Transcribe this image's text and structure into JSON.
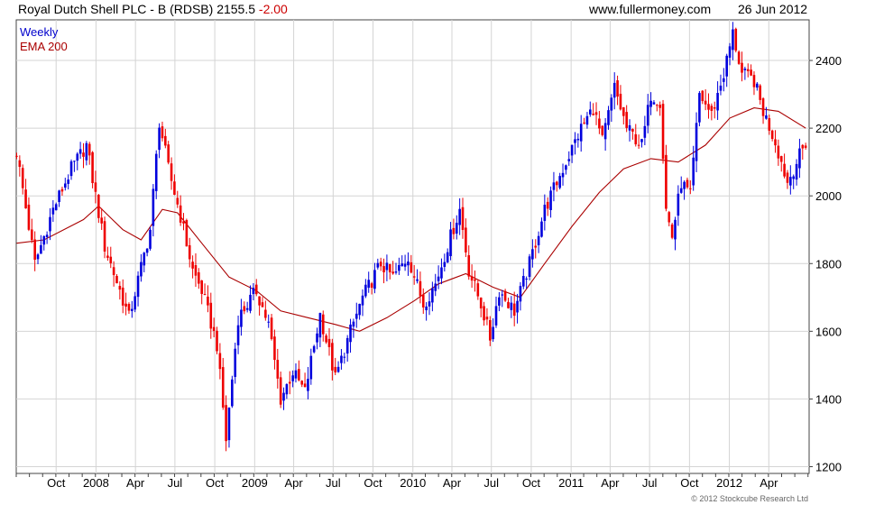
{
  "header": {
    "title": "Royal Dutch Shell PLC - B (RDSB)",
    "last": "2155.5",
    "change": "-2.00",
    "site": "www.fullermoney.com",
    "date": "26 Jun 2012"
  },
  "legend": {
    "weekly": "Weekly",
    "ema": "EMA 200"
  },
  "copyright": "© 2012 Stockcube Research Ltd",
  "colors": {
    "up": "#0000dd",
    "down": "#ee0000",
    "ema": "#aa0000",
    "grid": "#d4d4d4"
  },
  "chart_data": {
    "type": "candlestick",
    "title": "Royal Dutch Shell PLC - B (RDSB)",
    "ylim": [
      1180,
      2520
    ],
    "yticks": [
      1200,
      1400,
      1600,
      1800,
      2000,
      2200,
      2400
    ],
    "xticks": [
      {
        "label": "Oct",
        "date": "2007-10-01"
      },
      {
        "label": "2008",
        "date": "2008-01-01"
      },
      {
        "label": "Apr",
        "date": "2008-04-01"
      },
      {
        "label": "Jul",
        "date": "2008-07-01"
      },
      {
        "label": "Oct",
        "date": "2008-10-01"
      },
      {
        "label": "2009",
        "date": "2009-01-01"
      },
      {
        "label": "Apr",
        "date": "2009-04-01"
      },
      {
        "label": "Jul",
        "date": "2009-07-01"
      },
      {
        "label": "Oct",
        "date": "2009-10-01"
      },
      {
        "label": "2010",
        "date": "2010-01-01"
      },
      {
        "label": "Apr",
        "date": "2010-04-01"
      },
      {
        "label": "Jul",
        "date": "2010-07-01"
      },
      {
        "label": "Oct",
        "date": "2010-10-01"
      },
      {
        "label": "2011",
        "date": "2011-01-01"
      },
      {
        "label": "Apr",
        "date": "2011-04-01"
      },
      {
        "label": "Jul",
        "date": "2011-07-01"
      },
      {
        "label": "Oct",
        "date": "2011-10-01"
      },
      {
        "label": "2012",
        "date": "2012-01-01"
      },
      {
        "label": "Apr",
        "date": "2012-04-01"
      }
    ],
    "series": [
      {
        "name": "Weekly",
        "key_closes": [
          {
            "date": "2007-07-02",
            "value": 2130
          },
          {
            "date": "2007-08-13",
            "value": 1800
          },
          {
            "date": "2007-09-24",
            "value": 1960
          },
          {
            "date": "2007-11-05",
            "value": 2080
          },
          {
            "date": "2007-12-10",
            "value": 2150
          },
          {
            "date": "2008-01-21",
            "value": 1850
          },
          {
            "date": "2008-02-25",
            "value": 1720
          },
          {
            "date": "2008-03-17",
            "value": 1640
          },
          {
            "date": "2008-05-05",
            "value": 1900
          },
          {
            "date": "2008-05-26",
            "value": 2220
          },
          {
            "date": "2008-06-16",
            "value": 2080
          },
          {
            "date": "2008-07-14",
            "value": 1940
          },
          {
            "date": "2008-08-11",
            "value": 1780
          },
          {
            "date": "2008-09-01",
            "value": 1720
          },
          {
            "date": "2008-10-06",
            "value": 1560
          },
          {
            "date": "2008-10-27",
            "value": 1280
          },
          {
            "date": "2008-11-24",
            "value": 1640
          },
          {
            "date": "2009-01-05",
            "value": 1720
          },
          {
            "date": "2009-02-02",
            "value": 1620
          },
          {
            "date": "2009-03-02",
            "value": 1400
          },
          {
            "date": "2009-03-30",
            "value": 1480
          },
          {
            "date": "2009-04-27",
            "value": 1420
          },
          {
            "date": "2009-06-01",
            "value": 1650
          },
          {
            "date": "2009-07-06",
            "value": 1460
          },
          {
            "date": "2009-08-10",
            "value": 1600
          },
          {
            "date": "2009-09-07",
            "value": 1700
          },
          {
            "date": "2009-10-19",
            "value": 1800
          },
          {
            "date": "2009-11-16",
            "value": 1760
          },
          {
            "date": "2009-12-21",
            "value": 1820
          },
          {
            "date": "2010-01-25",
            "value": 1680
          },
          {
            "date": "2010-02-22",
            "value": 1740
          },
          {
            "date": "2010-03-29",
            "value": 1880
          },
          {
            "date": "2010-04-19",
            "value": 1960
          },
          {
            "date": "2010-05-10",
            "value": 1780
          },
          {
            "date": "2010-06-07",
            "value": 1680
          },
          {
            "date": "2010-06-28",
            "value": 1580
          },
          {
            "date": "2010-07-19",
            "value": 1720
          },
          {
            "date": "2010-08-23",
            "value": 1660
          },
          {
            "date": "2010-09-27",
            "value": 1800
          },
          {
            "date": "2010-11-01",
            "value": 1960
          },
          {
            "date": "2010-12-13",
            "value": 2080
          },
          {
            "date": "2011-01-24",
            "value": 2200
          },
          {
            "date": "2011-02-21",
            "value": 2260
          },
          {
            "date": "2011-03-14",
            "value": 2160
          },
          {
            "date": "2011-04-11",
            "value": 2320
          },
          {
            "date": "2011-05-09",
            "value": 2200
          },
          {
            "date": "2011-06-13",
            "value": 2150
          },
          {
            "date": "2011-07-04",
            "value": 2300
          },
          {
            "date": "2011-07-25",
            "value": 2280
          },
          {
            "date": "2011-08-08",
            "value": 1960
          },
          {
            "date": "2011-08-22",
            "value": 1880
          },
          {
            "date": "2011-09-12",
            "value": 2040
          },
          {
            "date": "2011-10-03",
            "value": 2000
          },
          {
            "date": "2011-10-24",
            "value": 2300
          },
          {
            "date": "2011-11-21",
            "value": 2240
          },
          {
            "date": "2011-12-19",
            "value": 2360
          },
          {
            "date": "2012-01-09",
            "value": 2480
          },
          {
            "date": "2012-01-30",
            "value": 2360
          },
          {
            "date": "2012-02-27",
            "value": 2340
          },
          {
            "date": "2012-03-19",
            "value": 2250
          },
          {
            "date": "2012-04-16",
            "value": 2160
          },
          {
            "date": "2012-05-14",
            "value": 2040
          },
          {
            "date": "2012-06-04",
            "value": 2100
          },
          {
            "date": "2012-06-25",
            "value": 2155.5
          }
        ]
      },
      {
        "name": "EMA 200",
        "points": [
          {
            "date": "2007-07-02",
            "value": 1860
          },
          {
            "date": "2007-09-03",
            "value": 1870
          },
          {
            "date": "2007-12-03",
            "value": 1930
          },
          {
            "date": "2008-01-07",
            "value": 1970
          },
          {
            "date": "2008-03-03",
            "value": 1900
          },
          {
            "date": "2008-04-14",
            "value": 1870
          },
          {
            "date": "2008-06-02",
            "value": 1960
          },
          {
            "date": "2008-07-07",
            "value": 1950
          },
          {
            "date": "2008-09-01",
            "value": 1860
          },
          {
            "date": "2008-11-03",
            "value": 1760
          },
          {
            "date": "2009-01-05",
            "value": 1720
          },
          {
            "date": "2009-03-02",
            "value": 1660
          },
          {
            "date": "2009-05-04",
            "value": 1640
          },
          {
            "date": "2009-07-06",
            "value": 1620
          },
          {
            "date": "2009-08-31",
            "value": 1600
          },
          {
            "date": "2009-11-02",
            "value": 1640
          },
          {
            "date": "2010-01-04",
            "value": 1690
          },
          {
            "date": "2010-03-01",
            "value": 1740
          },
          {
            "date": "2010-05-03",
            "value": 1770
          },
          {
            "date": "2010-07-05",
            "value": 1730
          },
          {
            "date": "2010-09-06",
            "value": 1700
          },
          {
            "date": "2010-11-01",
            "value": 1800
          },
          {
            "date": "2011-01-03",
            "value": 1910
          },
          {
            "date": "2011-03-07",
            "value": 2010
          },
          {
            "date": "2011-05-02",
            "value": 2080
          },
          {
            "date": "2011-07-04",
            "value": 2110
          },
          {
            "date": "2011-09-05",
            "value": 2100
          },
          {
            "date": "2011-11-07",
            "value": 2150
          },
          {
            "date": "2012-01-02",
            "value": 2230
          },
          {
            "date": "2012-02-27",
            "value": 2260
          },
          {
            "date": "2012-04-23",
            "value": 2250
          },
          {
            "date": "2012-06-25",
            "value": 2200
          }
        ]
      }
    ],
    "grid": true,
    "legend_position": "top-left"
  }
}
